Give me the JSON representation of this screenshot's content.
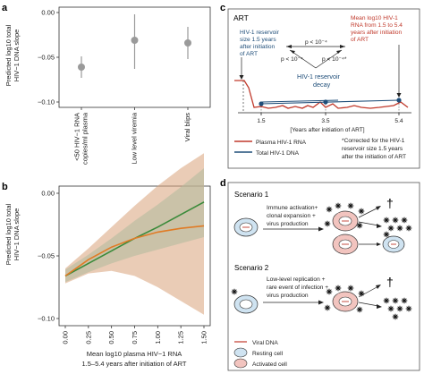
{
  "panels": {
    "a": {
      "label": "a",
      "ylabel": [
        "Predicted log10 total",
        "HIV−1 DNA slope"
      ],
      "chart_data": {
        "type": "scatter",
        "categories": [
          "<50 HIV−1 RNA copies/ml plasma",
          "Low level viremia",
          "Viral blips"
        ],
        "category_lines": [
          [
            "<50 HIV−1 RNA",
            "copies/ml plasma"
          ],
          [
            "Low level viremia"
          ],
          [
            "Viral blips"
          ]
        ],
        "values": [
          -0.061,
          -0.031,
          -0.034
        ],
        "ci_low": [
          -0.073,
          -0.063,
          -0.052
        ],
        "ci_high": [
          -0.049,
          -0.002,
          -0.016
        ],
        "yticks": [
          "0.00",
          "−0.05",
          "−0.10"
        ],
        "ylim": [
          -0.1,
          0.0
        ]
      }
    },
    "b": {
      "label": "b",
      "ylabel": [
        "Predicted log10 total",
        "HIV−1 DNA slope"
      ],
      "xlabel": [
        "Mean log10 plasma HIV−1 RNA",
        "1.5–5.4 years after initiation of ART"
      ],
      "chart_data": {
        "type": "line",
        "x": [
          0.0,
          0.25,
          0.5,
          0.75,
          1.0,
          1.25,
          1.5
        ],
        "xticks": [
          "0.00",
          "0.25",
          "0.50",
          "0.75",
          "1.00",
          "1.25",
          "1.50"
        ],
        "yticks": [
          "0.00",
          "−0.05",
          "−0.10"
        ],
        "ylim": [
          -0.1,
          0.0
        ],
        "series": [
          {
            "values": [
              -0.066,
              -0.056,
              -0.046,
              -0.036,
              -0.027,
              -0.017,
              -0.007
            ],
            "low": [
              -0.071,
              -0.063,
              -0.056,
              -0.05,
              -0.045,
              -0.04,
              -0.035
            ],
            "high": [
              -0.061,
              -0.049,
              -0.036,
              -0.022,
              -0.009,
              0.005,
              0.02
            ],
            "color": "#3a8a3a",
            "band": "#7fd6c6"
          },
          {
            "values": [
              -0.066,
              -0.053,
              -0.043,
              -0.036,
              -0.031,
              -0.028,
              -0.026
            ],
            "low": [
              -0.072,
              -0.064,
              -0.062,
              -0.066,
              -0.075,
              -0.086,
              -0.097
            ],
            "high": [
              -0.06,
              -0.044,
              -0.027,
              -0.01,
              0.006,
              0.02,
              0.032
            ],
            "color": "#e07b25",
            "band": "#d9a27a"
          }
        ]
      }
    },
    "c": {
      "label": "c",
      "title": "ART",
      "reservoir_text": [
        "HIV-1 reservoir",
        "size 1.5 years",
        "after initiation",
        "of ART"
      ],
      "mean_text": [
        "Mean log10 HIV-1",
        "RNA from 1.5 to 5.4",
        "years after initiation",
        "of ART"
      ],
      "p1": "p < 10⁻⁴",
      "p2": "p < 10⁻⁴*",
      "p3": "p < 10⁻⁴",
      "decay_text": [
        "HIV-1 reservoir",
        "decay"
      ],
      "xticks": [
        "1.5",
        "3.5",
        "5.4"
      ],
      "xlabel": "[Years after initiation of ART]",
      "legend": {
        "rna": "Plasma HIV-1 RNA",
        "dna": "Total HIV-1 DNA"
      },
      "footnote": [
        "*Corrected for the HIV-1",
        "reservoir size 1.5 years",
        "after the initiation of ART"
      ],
      "colors": {
        "rna": "#c0392b",
        "dna": "#1f4e79"
      }
    },
    "d": {
      "label": "d",
      "scenario1": "Scenario 1",
      "scenario1_text": [
        "Immune activation+",
        "clonal expansion +",
        "virus production"
      ],
      "scenario2": "Scenario 2",
      "scenario2_text": [
        "Low-level replication +",
        "rare event of infection +",
        "virus production"
      ],
      "dagger": "†",
      "legend": {
        "viral_dna": "Viral DNA",
        "resting": "Resting cell",
        "activated": "Activated cell"
      },
      "colors": {
        "resting": "#cfe3f1",
        "activated": "#f2c4bf",
        "nucleus": "#ffffff"
      }
    }
  }
}
